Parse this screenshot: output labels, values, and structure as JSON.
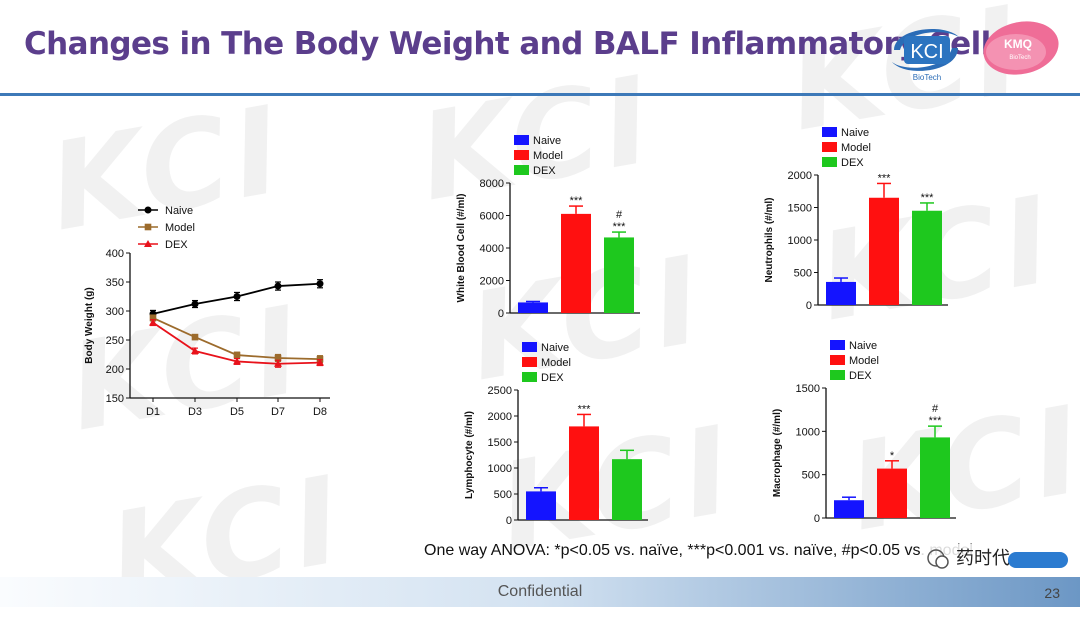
{
  "title": "Changes in The Body Weight and BALF Inflammatory Cells",
  "logos": {
    "kci": {
      "text": "KCI",
      "sub": "BioTech"
    },
    "kmq": {
      "text": "KMQ",
      "sub": "BioTech"
    }
  },
  "watermark": "KCI",
  "footnote": "One way ANOVA: *p<0.05 vs. naïve, ***p<0.001 vs. naïve, #p<0.05 vs. model",
  "footer": {
    "text": "Confidential",
    "page": "23"
  },
  "wechat": {
    "name": "药时代"
  },
  "colors": {
    "title": "#5b3e8c",
    "rule": "#3d79b8",
    "naive_line": "#000000",
    "model_line": "#9c6b2c",
    "dex_line": "#e8121b",
    "naive_bar": "#1414ff",
    "model_bar": "#ff1010",
    "dex_bar": "#1ec81e"
  },
  "chart_data": [
    {
      "id": "body-weight",
      "type": "line",
      "title": "",
      "xlabel": "",
      "ylabel": "Body Weight (g)",
      "categories": [
        "D1",
        "D3",
        "D5",
        "D7",
        "D8"
      ],
      "ylim": [
        150,
        400
      ],
      "yticks": [
        150,
        200,
        250,
        300,
        350,
        400
      ],
      "legend_position": "top",
      "series": [
        {
          "name": "Naive",
          "marker": "circle",
          "color": "#000000",
          "values": [
            295,
            312,
            325,
            343,
            347
          ],
          "errors": [
            6,
            6,
            7,
            7,
            7
          ]
        },
        {
          "name": "Model",
          "marker": "square",
          "color": "#9c6b2c",
          "values": [
            288,
            255,
            224,
            219,
            217
          ],
          "errors": [
            5,
            4,
            5,
            6,
            6
          ]
        },
        {
          "name": "DEX",
          "marker": "triangle",
          "color": "#e8121b",
          "values": [
            280,
            231,
            213,
            209,
            211
          ],
          "errors": [
            5,
            5,
            5,
            6,
            5
          ]
        }
      ]
    },
    {
      "id": "wbc",
      "type": "bar",
      "title": "",
      "ylabel": "White Blood Cell (#/ml)",
      "categories": [
        "Naive",
        "Model",
        "DEX"
      ],
      "ylim": [
        0,
        8000
      ],
      "yticks": [
        0,
        2000,
        4000,
        6000,
        8000
      ],
      "values": [
        650,
        6100,
        4650
      ],
      "errors": [
        60,
        480,
        330
      ],
      "annotations": [
        "",
        "***",
        "***"
      ],
      "annotations2": [
        "",
        "",
        "#"
      ]
    },
    {
      "id": "neutrophils",
      "type": "bar",
      "title": "",
      "ylabel": "Neutrophils (#/ml)",
      "categories": [
        "Naive",
        "Model",
        "DEX"
      ],
      "ylim": [
        0,
        2000
      ],
      "yticks": [
        0,
        500,
        1000,
        1500,
        2000
      ],
      "values": [
        355,
        1650,
        1450
      ],
      "errors": [
        60,
        220,
        120
      ],
      "annotations": [
        "",
        "***",
        "***"
      ],
      "annotations2": [
        "",
        "",
        ""
      ]
    },
    {
      "id": "lymphocyte",
      "type": "bar",
      "title": "",
      "ylabel": "Lymphocyte (#/ml)",
      "categories": [
        "Naive",
        "Model",
        "DEX"
      ],
      "ylim": [
        0,
        2500
      ],
      "yticks": [
        0,
        500,
        1000,
        1500,
        2000,
        2500
      ],
      "values": [
        550,
        1800,
        1170
      ],
      "errors": [
        70,
        230,
        170
      ],
      "annotations": [
        "",
        "***",
        ""
      ],
      "annotations2": [
        "",
        "",
        ""
      ]
    },
    {
      "id": "macrophage",
      "type": "bar",
      "title": "",
      "ylabel": "Macrophage (#/ml)",
      "categories": [
        "Naive",
        "Model",
        "DEX"
      ],
      "ylim": [
        0,
        1500
      ],
      "yticks": [
        0,
        500,
        1000,
        1500
      ],
      "values": [
        205,
        570,
        930
      ],
      "errors": [
        35,
        90,
        130
      ],
      "annotations": [
        "",
        "*",
        "***"
      ],
      "annotations2": [
        "",
        "",
        "#"
      ]
    }
  ]
}
